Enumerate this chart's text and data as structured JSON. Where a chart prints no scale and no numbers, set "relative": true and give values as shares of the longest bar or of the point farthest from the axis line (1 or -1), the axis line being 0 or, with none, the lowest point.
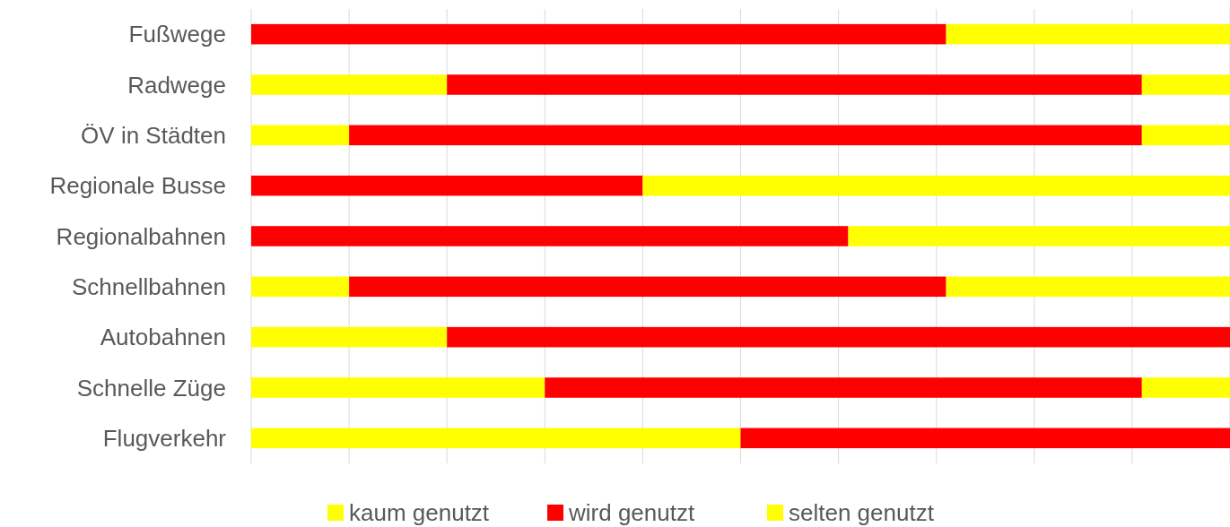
{
  "chart_data": {
    "type": "bar",
    "orientation": "horizontal",
    "stacked": true,
    "relative": true,
    "grid": true,
    "legend": "bottom",
    "categories": [
      "Fußwege",
      "Radwege",
      "ÖV in Städten",
      "Regionale Busse",
      "Regionalbahnen",
      "Schnellbahnen",
      "Autobahnen",
      "Schnelle Züge",
      "Flugverkehr"
    ],
    "series": [
      {
        "name": "kaum genutzt",
        "color": "#ffff00",
        "values": [
          0,
          0.2,
          0.1,
          0,
          0,
          0.1,
          0.2,
          0.3,
          0.5
        ]
      },
      {
        "name": "wird genutzt",
        "color": "#ff0000",
        "values": [
          0.71,
          0.71,
          0.81,
          0.4,
          0.61,
          0.61,
          0.8,
          0.61,
          0.5
        ]
      },
      {
        "name": "selten genutzt",
        "color": "#ffff00",
        "values": [
          0.29,
          0.09,
          0.09,
          0.6,
          0.39,
          0.29,
          0,
          0.09,
          0
        ]
      }
    ]
  }
}
